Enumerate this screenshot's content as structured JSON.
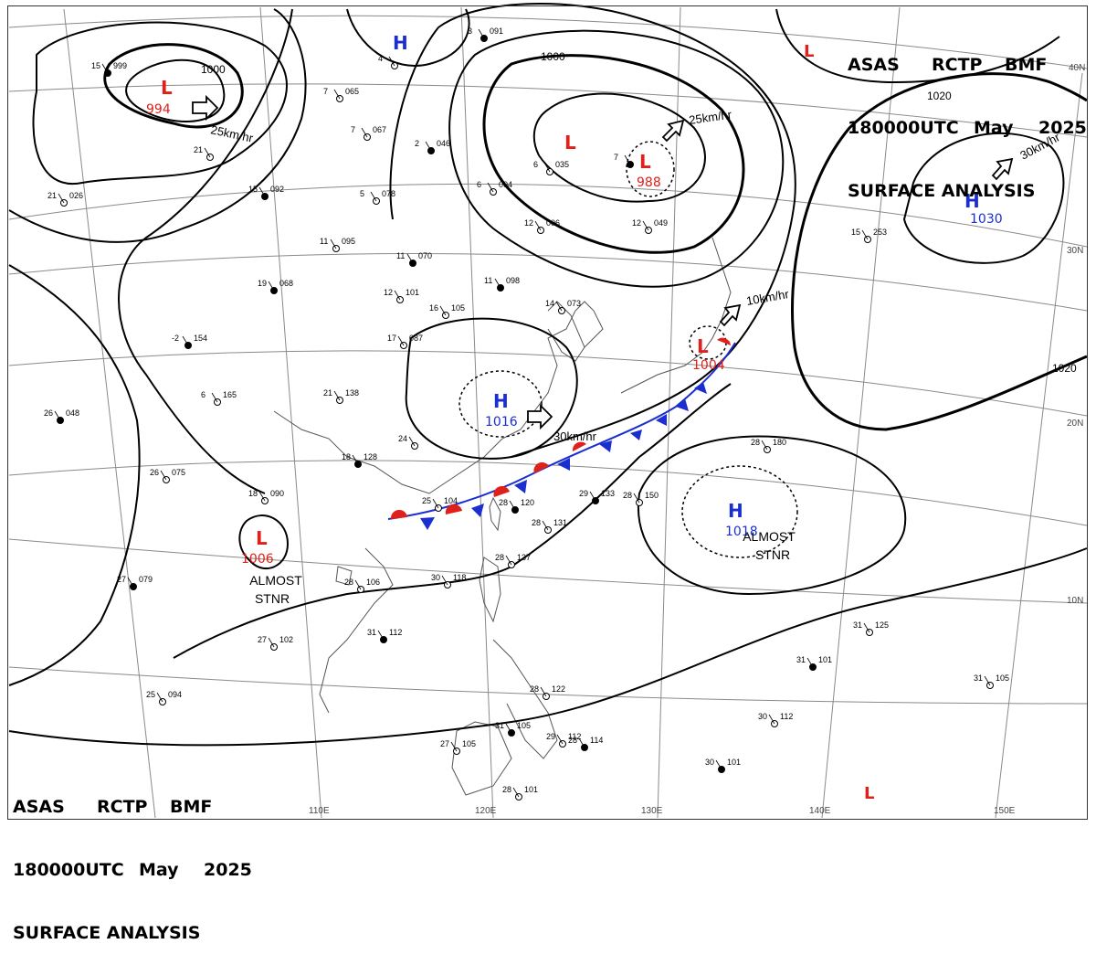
{
  "header": {
    "line1": [
      "ASAS",
      "RCTP",
      "BMF"
    ],
    "line2": [
      "180000UTC",
      "May",
      "2025"
    ],
    "line3": "SURFACE ANALYSIS"
  },
  "lat_labels": [
    "40N",
    "30N",
    "20N",
    "10N"
  ],
  "lon_labels": [
    "110E",
    "120E",
    "130E",
    "140E",
    "150E"
  ],
  "isobar_labels": [
    "1000",
    "1000",
    "1020",
    "1020"
  ],
  "pressure_centers": [
    {
      "type": "L",
      "value": "994"
    },
    {
      "type": "L",
      "value": ""
    },
    {
      "type": "L",
      "value": "988"
    },
    {
      "type": "L",
      "value": "1004"
    },
    {
      "type": "L",
      "value": "1006"
    },
    {
      "type": "L",
      "value": ""
    },
    {
      "type": "L",
      "value": ""
    },
    {
      "type": "H",
      "value": ""
    },
    {
      "type": "H",
      "value": "1016"
    },
    {
      "type": "H",
      "value": "1018"
    },
    {
      "type": "H",
      "value": "1030"
    }
  ],
  "motion_labels": [
    "25km/hr",
    "25km/hr",
    "30km/hr",
    "10km/hr",
    "30km/hr"
  ],
  "annotations": [
    "ALMOST STNR",
    "ALMOST STNR"
  ],
  "stations": [
    {
      "t": "15",
      "p": "999"
    },
    {
      "t": "21",
      "p": ""
    },
    {
      "t": "21",
      "p": "026"
    },
    {
      "t": "15",
      "p": "092"
    },
    {
      "t": "7",
      "p": "065"
    },
    {
      "t": "7",
      "p": "067"
    },
    {
      "t": "2",
      "p": "046"
    },
    {
      "t": "5",
      "p": "078"
    },
    {
      "t": "11",
      "p": "095"
    },
    {
      "t": "11",
      "p": "070"
    },
    {
      "t": "6",
      "p": "004"
    },
    {
      "t": "6",
      "p": "035"
    },
    {
      "t": "7",
      "p": ""
    },
    {
      "t": "12",
      "p": "006"
    },
    {
      "t": "12",
      "p": "049"
    },
    {
      "t": "19",
      "p": "068"
    },
    {
      "t": "12",
      "p": "101"
    },
    {
      "t": "16",
      "p": "105"
    },
    {
      "t": "11",
      "p": "098"
    },
    {
      "t": "14",
      "p": "073"
    },
    {
      "t": "17",
      "p": "087"
    },
    {
      "t": "-2",
      "p": "154"
    },
    {
      "t": "6",
      "p": "165"
    },
    {
      "t": "21",
      "p": "138"
    },
    {
      "t": "26",
      "p": "048"
    },
    {
      "t": "26",
      "p": "075"
    },
    {
      "t": "24",
      "p": ""
    },
    {
      "t": "18",
      "p": "128"
    },
    {
      "t": "18",
      "p": "090"
    },
    {
      "t": "25",
      "p": "104"
    },
    {
      "t": "28",
      "p": "120"
    },
    {
      "t": "28",
      "p": "131"
    },
    {
      "t": "28",
      "p": "137"
    },
    {
      "t": "29",
      "p": "133"
    },
    {
      "t": "28",
      "p": "150"
    },
    {
      "t": "28",
      "p": "180"
    },
    {
      "t": "27",
      "p": "079"
    },
    {
      "t": "28",
      "p": "106"
    },
    {
      "t": "27",
      "p": "102"
    },
    {
      "t": "31",
      "p": "112"
    },
    {
      "t": "30",
      "p": "118"
    },
    {
      "t": "25",
      "p": "094"
    },
    {
      "t": "31",
      "p": "105"
    },
    {
      "t": "27",
      "p": "105"
    },
    {
      "t": "29",
      "p": "112"
    },
    {
      "t": "28",
      "p": "114"
    },
    {
      "t": "28",
      "p": "101"
    },
    {
      "t": "31",
      "p": "125"
    },
    {
      "t": "31",
      "p": "101"
    },
    {
      "t": "31",
      "p": "105"
    },
    {
      "t": "30",
      "p": "112"
    },
    {
      "t": "30",
      "p": "101"
    },
    {
      "t": "15",
      "p": "253"
    },
    {
      "t": "28",
      "p": "122"
    },
    {
      "t": "3",
      "p": "091"
    },
    {
      "t": "4",
      "p": ""
    }
  ],
  "colors": {
    "low": "#e0201a",
    "high": "#1b2fd0",
    "isobar": "#000000",
    "grid": "#8a8a8a",
    "coast": "#555555",
    "warm_front": "#e0201a",
    "cold_front": "#1b2fd0"
  }
}
